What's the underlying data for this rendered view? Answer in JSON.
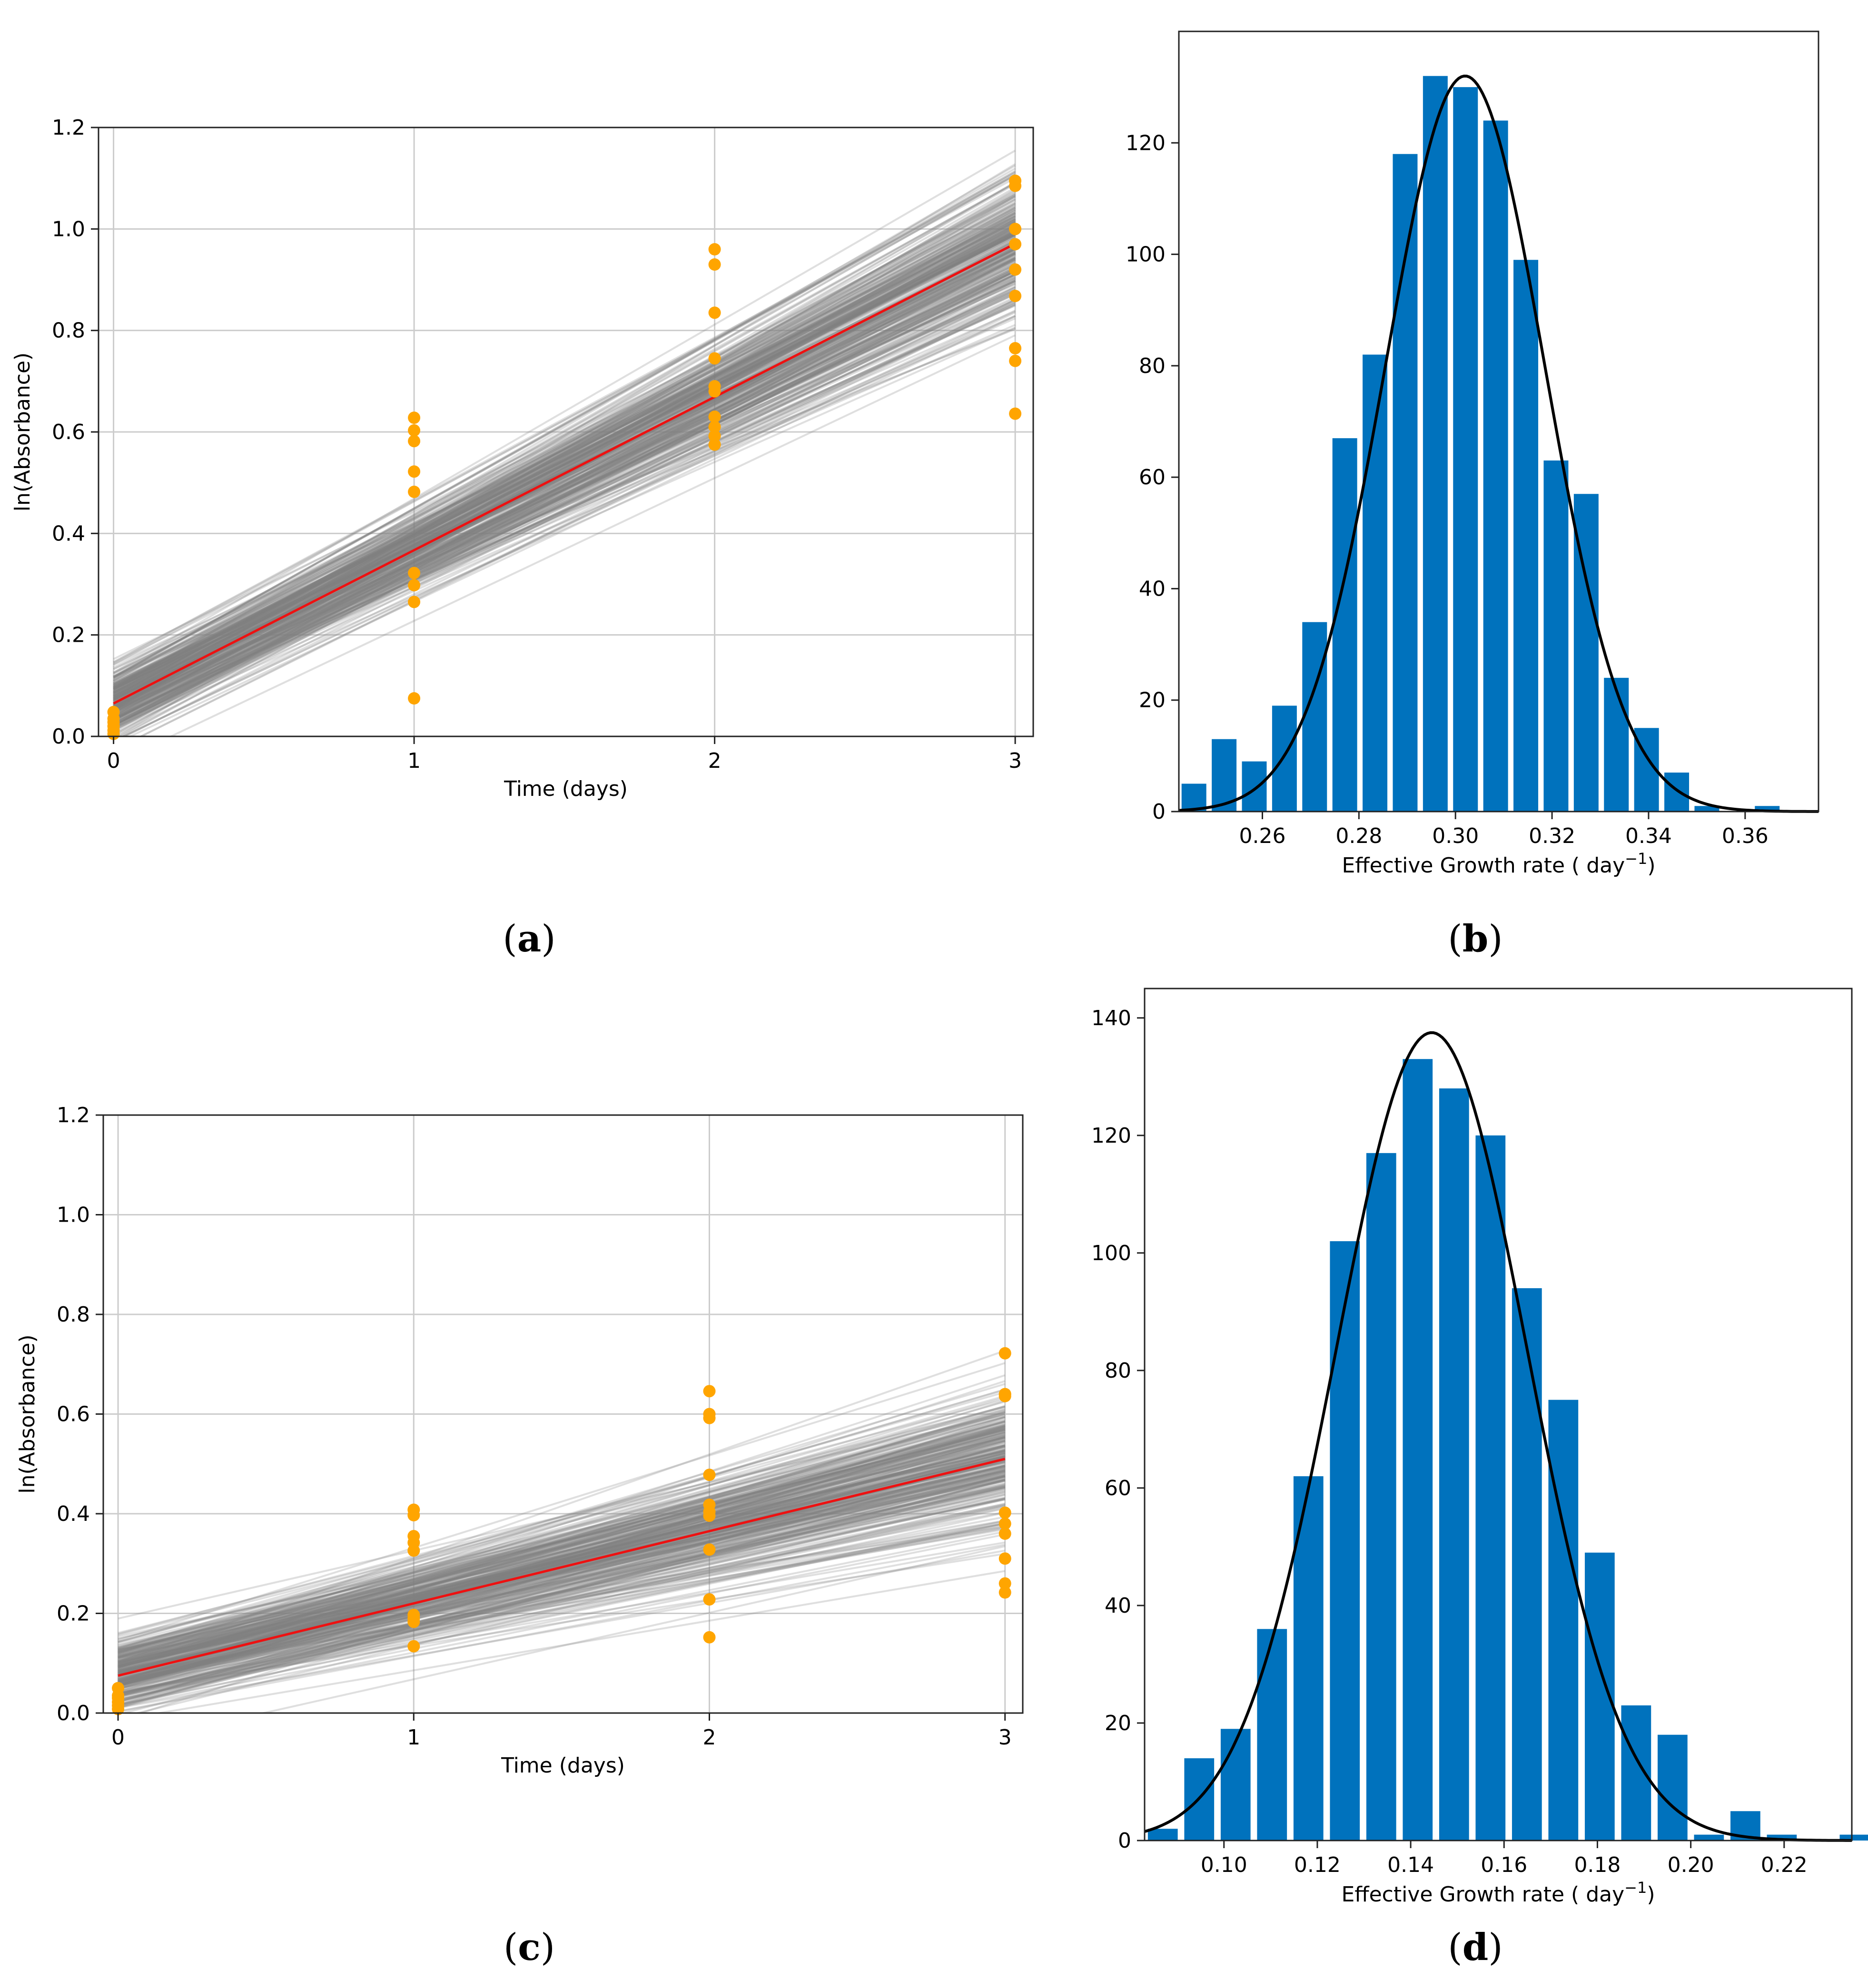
{
  "colors": {
    "line_fit": "#ee1111",
    "ensemble": "#808080",
    "points": "#ffa500",
    "bars": "#0072bd",
    "normal_curve": "#000000",
    "grid": "#cccccc"
  },
  "chart_data": [
    {
      "id": "a",
      "panel_label": "a",
      "type": "scatter",
      "xlabel": "Time (days)",
      "ylabel": "ln(Absorbance)",
      "xlim": [
        -0.05,
        3.06
      ],
      "ylim": [
        0.0,
        1.2
      ],
      "xticks": [
        0,
        1,
        2,
        3
      ],
      "xtick_labels": [
        "0",
        "1",
        "2",
        "3"
      ],
      "yticks": [
        0.0,
        0.2,
        0.4,
        0.6,
        0.8,
        1.0,
        1.2
      ],
      "ytick_labels": [
        "0.0",
        "0.2",
        "0.4",
        "0.6",
        "0.8",
        "1.0",
        "1.2"
      ],
      "grid": true,
      "fit_line": {
        "intercept": 0.065,
        "slope": 0.302
      },
      "ensemble": {
        "n": 300,
        "slope_sd": 0.02,
        "intercept_sd": 0.035,
        "color": "gray",
        "alpha": 0.25
      },
      "points": {
        "x": [
          0,
          0,
          0,
          0,
          0,
          0,
          1,
          1,
          1,
          1,
          1,
          1,
          1,
          1,
          1,
          2,
          2,
          2,
          2,
          2,
          2,
          2,
          2,
          2,
          2,
          3,
          3,
          3,
          3,
          3,
          3,
          3,
          3,
          3,
          3
        ],
        "y": [
          0.048,
          0.035,
          0.028,
          0.02,
          0.012,
          0.005,
          0.628,
          0.603,
          0.582,
          0.522,
          0.482,
          0.322,
          0.298,
          0.265,
          0.075,
          0.96,
          0.93,
          0.835,
          0.745,
          0.69,
          0.68,
          0.61,
          0.592,
          0.575,
          0.63,
          1.095,
          1.085,
          1.0,
          0.92,
          0.868,
          0.765,
          0.74,
          0.636,
          0.97,
          1.0
        ]
      }
    },
    {
      "id": "b",
      "panel_label": "b",
      "type": "bar",
      "xlabel": "Effective Growth rate ( day",
      "xlabel_sup": "−1",
      "xlabel_end": ")",
      "xlim": [
        0.2427,
        0.3752
      ],
      "ylim": [
        0,
        140
      ],
      "xticks": [
        0.26,
        0.28,
        0.3,
        0.32,
        0.34,
        0.36
      ],
      "xtick_labels": [
        "0.26",
        "0.28",
        "0.30",
        "0.32",
        "0.34",
        "0.36"
      ],
      "yticks": [
        0,
        20,
        40,
        60,
        80,
        100,
        120
      ],
      "ytick_labels": [
        "0",
        "20",
        "40",
        "60",
        "80",
        "100",
        "120"
      ],
      "grid": false,
      "bin_start": 0.2427,
      "bin_width": 0.00625,
      "values": [
        5,
        13,
        9,
        19,
        34,
        67,
        82,
        118,
        132,
        130,
        124,
        99,
        63,
        57,
        24,
        15,
        7,
        1,
        0,
        1
      ],
      "normal_fit": {
        "mean": 0.302,
        "sd": 0.0165,
        "peak": 132
      }
    },
    {
      "id": "c",
      "panel_label": "c",
      "type": "scatter",
      "xlabel": "Time (days)",
      "ylabel": "ln(Absorbance)",
      "xlim": [
        -0.05,
        3.06
      ],
      "ylim": [
        0.0,
        1.2
      ],
      "xticks": [
        0,
        1,
        2,
        3
      ],
      "xtick_labels": [
        "0",
        "1",
        "2",
        "3"
      ],
      "yticks": [
        0.0,
        0.2,
        0.4,
        0.6,
        0.8,
        1.0,
        1.2
      ],
      "ytick_labels": [
        "0.0",
        "0.2",
        "0.4",
        "0.6",
        "0.8",
        "1.0",
        "1.2"
      ],
      "grid": true,
      "fit_line": {
        "intercept": 0.075,
        "slope": 0.145
      },
      "ensemble": {
        "n": 300,
        "slope_sd": 0.02,
        "intercept_sd": 0.035,
        "color": "gray",
        "alpha": 0.25
      },
      "points": {
        "x": [
          0,
          0,
          0,
          0,
          0,
          0,
          1,
          1,
          1,
          1,
          1,
          1,
          1,
          1,
          1,
          2,
          2,
          2,
          2,
          2,
          2,
          2,
          2,
          2,
          2,
          3,
          3,
          3,
          3,
          3,
          3,
          3,
          3,
          3,
          3
        ],
        "y": [
          0.05,
          0.035,
          0.03,
          0.022,
          0.015,
          0.008,
          0.408,
          0.397,
          0.355,
          0.342,
          0.326,
          0.197,
          0.19,
          0.183,
          0.134,
          0.646,
          0.6,
          0.592,
          0.478,
          0.418,
          0.404,
          0.396,
          0.328,
          0.228,
          0.152,
          0.722,
          0.64,
          0.636,
          0.402,
          0.38,
          0.36,
          0.31,
          0.26,
          0.242,
          0.64
        ]
      }
    },
    {
      "id": "d",
      "panel_label": "d",
      "type": "bar",
      "xlabel": "Effective Growth rate ( day",
      "xlabel_sup": "−1",
      "xlabel_end": ")",
      "xlim": [
        0.083,
        0.2345
      ],
      "ylim": [
        0,
        145
      ],
      "xticks": [
        0.1,
        0.12,
        0.14,
        0.16,
        0.18,
        0.2,
        0.22
      ],
      "xtick_labels": [
        "0.10",
        "0.12",
        "0.14",
        "0.16",
        "0.18",
        "0.20",
        "0.22"
      ],
      "yticks": [
        0,
        20,
        40,
        60,
        80,
        100,
        120,
        140
      ],
      "ytick_labels": [
        "0",
        "20",
        "40",
        "60",
        "80",
        "100",
        "120",
        "140"
      ],
      "grid": false,
      "bin_start": 0.083,
      "bin_width": 0.0078,
      "values": [
        2,
        14,
        19,
        36,
        62,
        102,
        117,
        133,
        128,
        120,
        94,
        75,
        49,
        23,
        18,
        1,
        5,
        1,
        0,
        1
      ],
      "normal_fit": {
        "mean": 0.1445,
        "sd": 0.0205,
        "peak": 137.5
      }
    }
  ]
}
